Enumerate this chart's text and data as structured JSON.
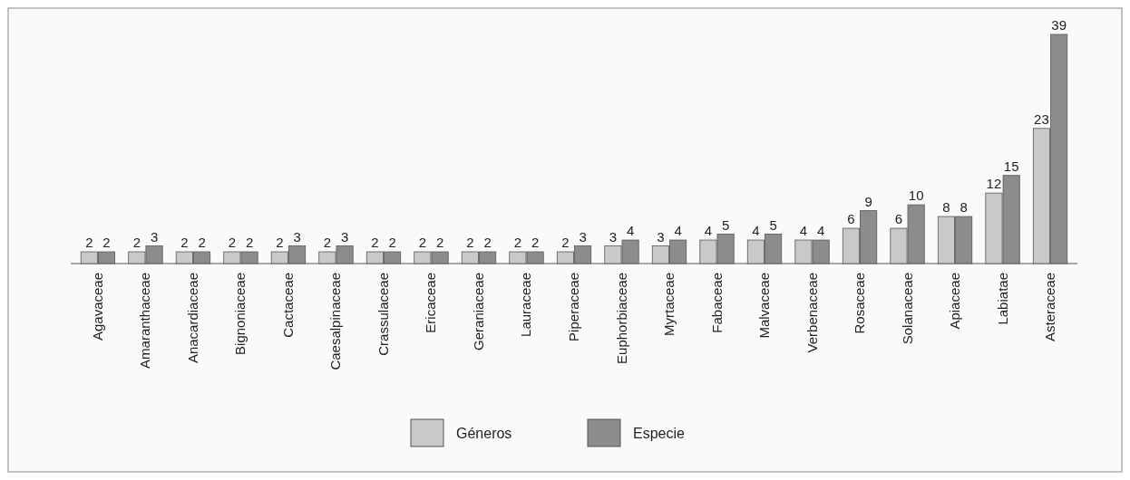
{
  "chart_data": {
    "type": "bar",
    "categories": [
      "Agavaceae",
      "Amaranthaceae",
      "Anacardiaceae",
      "Bignoniaceae",
      "Cactaceae",
      "Caesalpinaceae",
      "Crassulaceae",
      "Ericaceae",
      "Geraniaceae",
      "Lauraceae",
      "Piperaceae",
      "Euphorbiaceae",
      "Myrtaceae",
      "Fabaceae",
      "Malvaceae",
      "Verbenaceae",
      "Rosaceae",
      "Solanaceae",
      "Apiaceae",
      "Labiatae",
      "Asteraceae"
    ],
    "series": [
      {
        "name": "Géneros",
        "color": "#c9c9c9",
        "values": [
          2,
          2,
          2,
          2,
          2,
          2,
          2,
          2,
          2,
          2,
          2,
          3,
          3,
          4,
          4,
          4,
          6,
          6,
          8,
          12,
          23
        ]
      },
      {
        "name": "Especie",
        "color": "#8c8c8c",
        "values": [
          2,
          3,
          2,
          2,
          3,
          3,
          2,
          2,
          2,
          2,
          3,
          4,
          4,
          5,
          5,
          4,
          9,
          10,
          8,
          15,
          39
        ]
      }
    ],
    "data_labels": true,
    "legend": "bottom"
  }
}
